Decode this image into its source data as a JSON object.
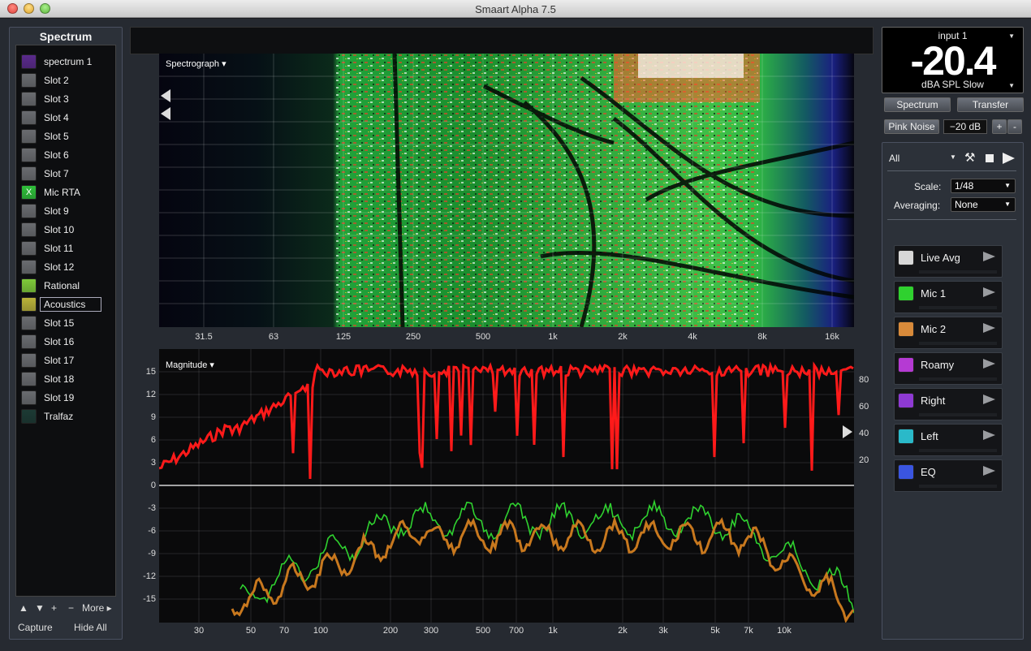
{
  "window": {
    "title": "Smaart Alpha 7.5"
  },
  "left_panel": {
    "title": "Spectrum",
    "slots": [
      {
        "label": "spectrum 1",
        "color": "#5a2a8c"
      },
      {
        "label": "Slot 2",
        "color": "#6a6c70"
      },
      {
        "label": "Slot 3",
        "color": "#6a6c70"
      },
      {
        "label": "Slot 4",
        "color": "#6a6c70"
      },
      {
        "label": "Slot 5",
        "color": "#6a6c70"
      },
      {
        "label": "Slot 6",
        "color": "#6a6c70"
      },
      {
        "label": "Slot 7",
        "color": "#6a6c70"
      },
      {
        "label": "Mic RTA",
        "color": "#2fbf3a",
        "badge": "X"
      },
      {
        "label": "Slot 9",
        "color": "#6a6c70"
      },
      {
        "label": "Slot 10",
        "color": "#6a6c70"
      },
      {
        "label": "Slot 11",
        "color": "#6a6c70"
      },
      {
        "label": "Slot 12",
        "color": "#6a6c70"
      },
      {
        "label": "Rational",
        "color": "#7ec93a"
      },
      {
        "label": "Acoustics",
        "color": "#b9b23a"
      },
      {
        "label": "Slot 15",
        "color": "#6a6c70"
      },
      {
        "label": "Slot 16",
        "color": "#6a6c70"
      },
      {
        "label": "Slot 17",
        "color": "#6a6c70"
      },
      {
        "label": "Slot 18",
        "color": "#6a6c70"
      },
      {
        "label": "Slot 19",
        "color": "#6a6c70"
      },
      {
        "label": "Tralfaz",
        "color": "#1c3a34"
      }
    ],
    "controls": {
      "up": "▲",
      "down": "▼",
      "add": "+",
      "remove": "−",
      "more": "More ▸"
    },
    "footer": {
      "capture": "Capture",
      "hide_all": "Hide All"
    }
  },
  "spectrograph": {
    "label": "Spectrograph ▾",
    "x_ticks": [
      "31.5",
      "63",
      "125",
      "250",
      "500",
      "1k",
      "2k",
      "4k",
      "8k",
      "16k"
    ]
  },
  "magnitude": {
    "label": "Magnitude ▾",
    "y_ticks": [
      "15",
      "12",
      "9",
      "6",
      "3",
      "0",
      "-3",
      "-6",
      "-9",
      "-12",
      "-15"
    ],
    "y2_ticks": [
      "80",
      "60",
      "40",
      "20"
    ],
    "x_ticks": [
      "30",
      "50",
      "70",
      "100",
      "200",
      "300",
      "500",
      "700",
      "1k",
      "2k",
      "3k",
      "5k",
      "7k",
      "10k"
    ],
    "colors": {
      "main_trace": "#ff1a1a",
      "mic1": "#2fd12f",
      "mic2": "#c8781e"
    }
  },
  "meter": {
    "input": "input 1",
    "value": "-20.4",
    "unit": "dBA SPL Slow"
  },
  "mode_buttons": {
    "spectrum": "Spectrum",
    "transfer": "Transfer"
  },
  "generator": {
    "label": "Pink Noise",
    "level": "−20 dB",
    "plus": "+",
    "minus": "-"
  },
  "control": {
    "group": "All",
    "scale_label": "Scale:",
    "scale_value": "1/48",
    "averaging_label": "Averaging:",
    "averaging_value": "None",
    "traces": [
      {
        "label": "Live Avg",
        "color": "#d8d8d8"
      },
      {
        "label": "Mic 1",
        "color": "#2fd12f"
      },
      {
        "label": "Mic 2",
        "color": "#d88a3a"
      },
      {
        "label": "Roamy",
        "color": "#b53ad3"
      },
      {
        "label": "Right",
        "color": "#8e3ad3"
      },
      {
        "label": "Left",
        "color": "#2ab9c9"
      },
      {
        "label": "EQ",
        "color": "#3a55e0"
      }
    ]
  }
}
